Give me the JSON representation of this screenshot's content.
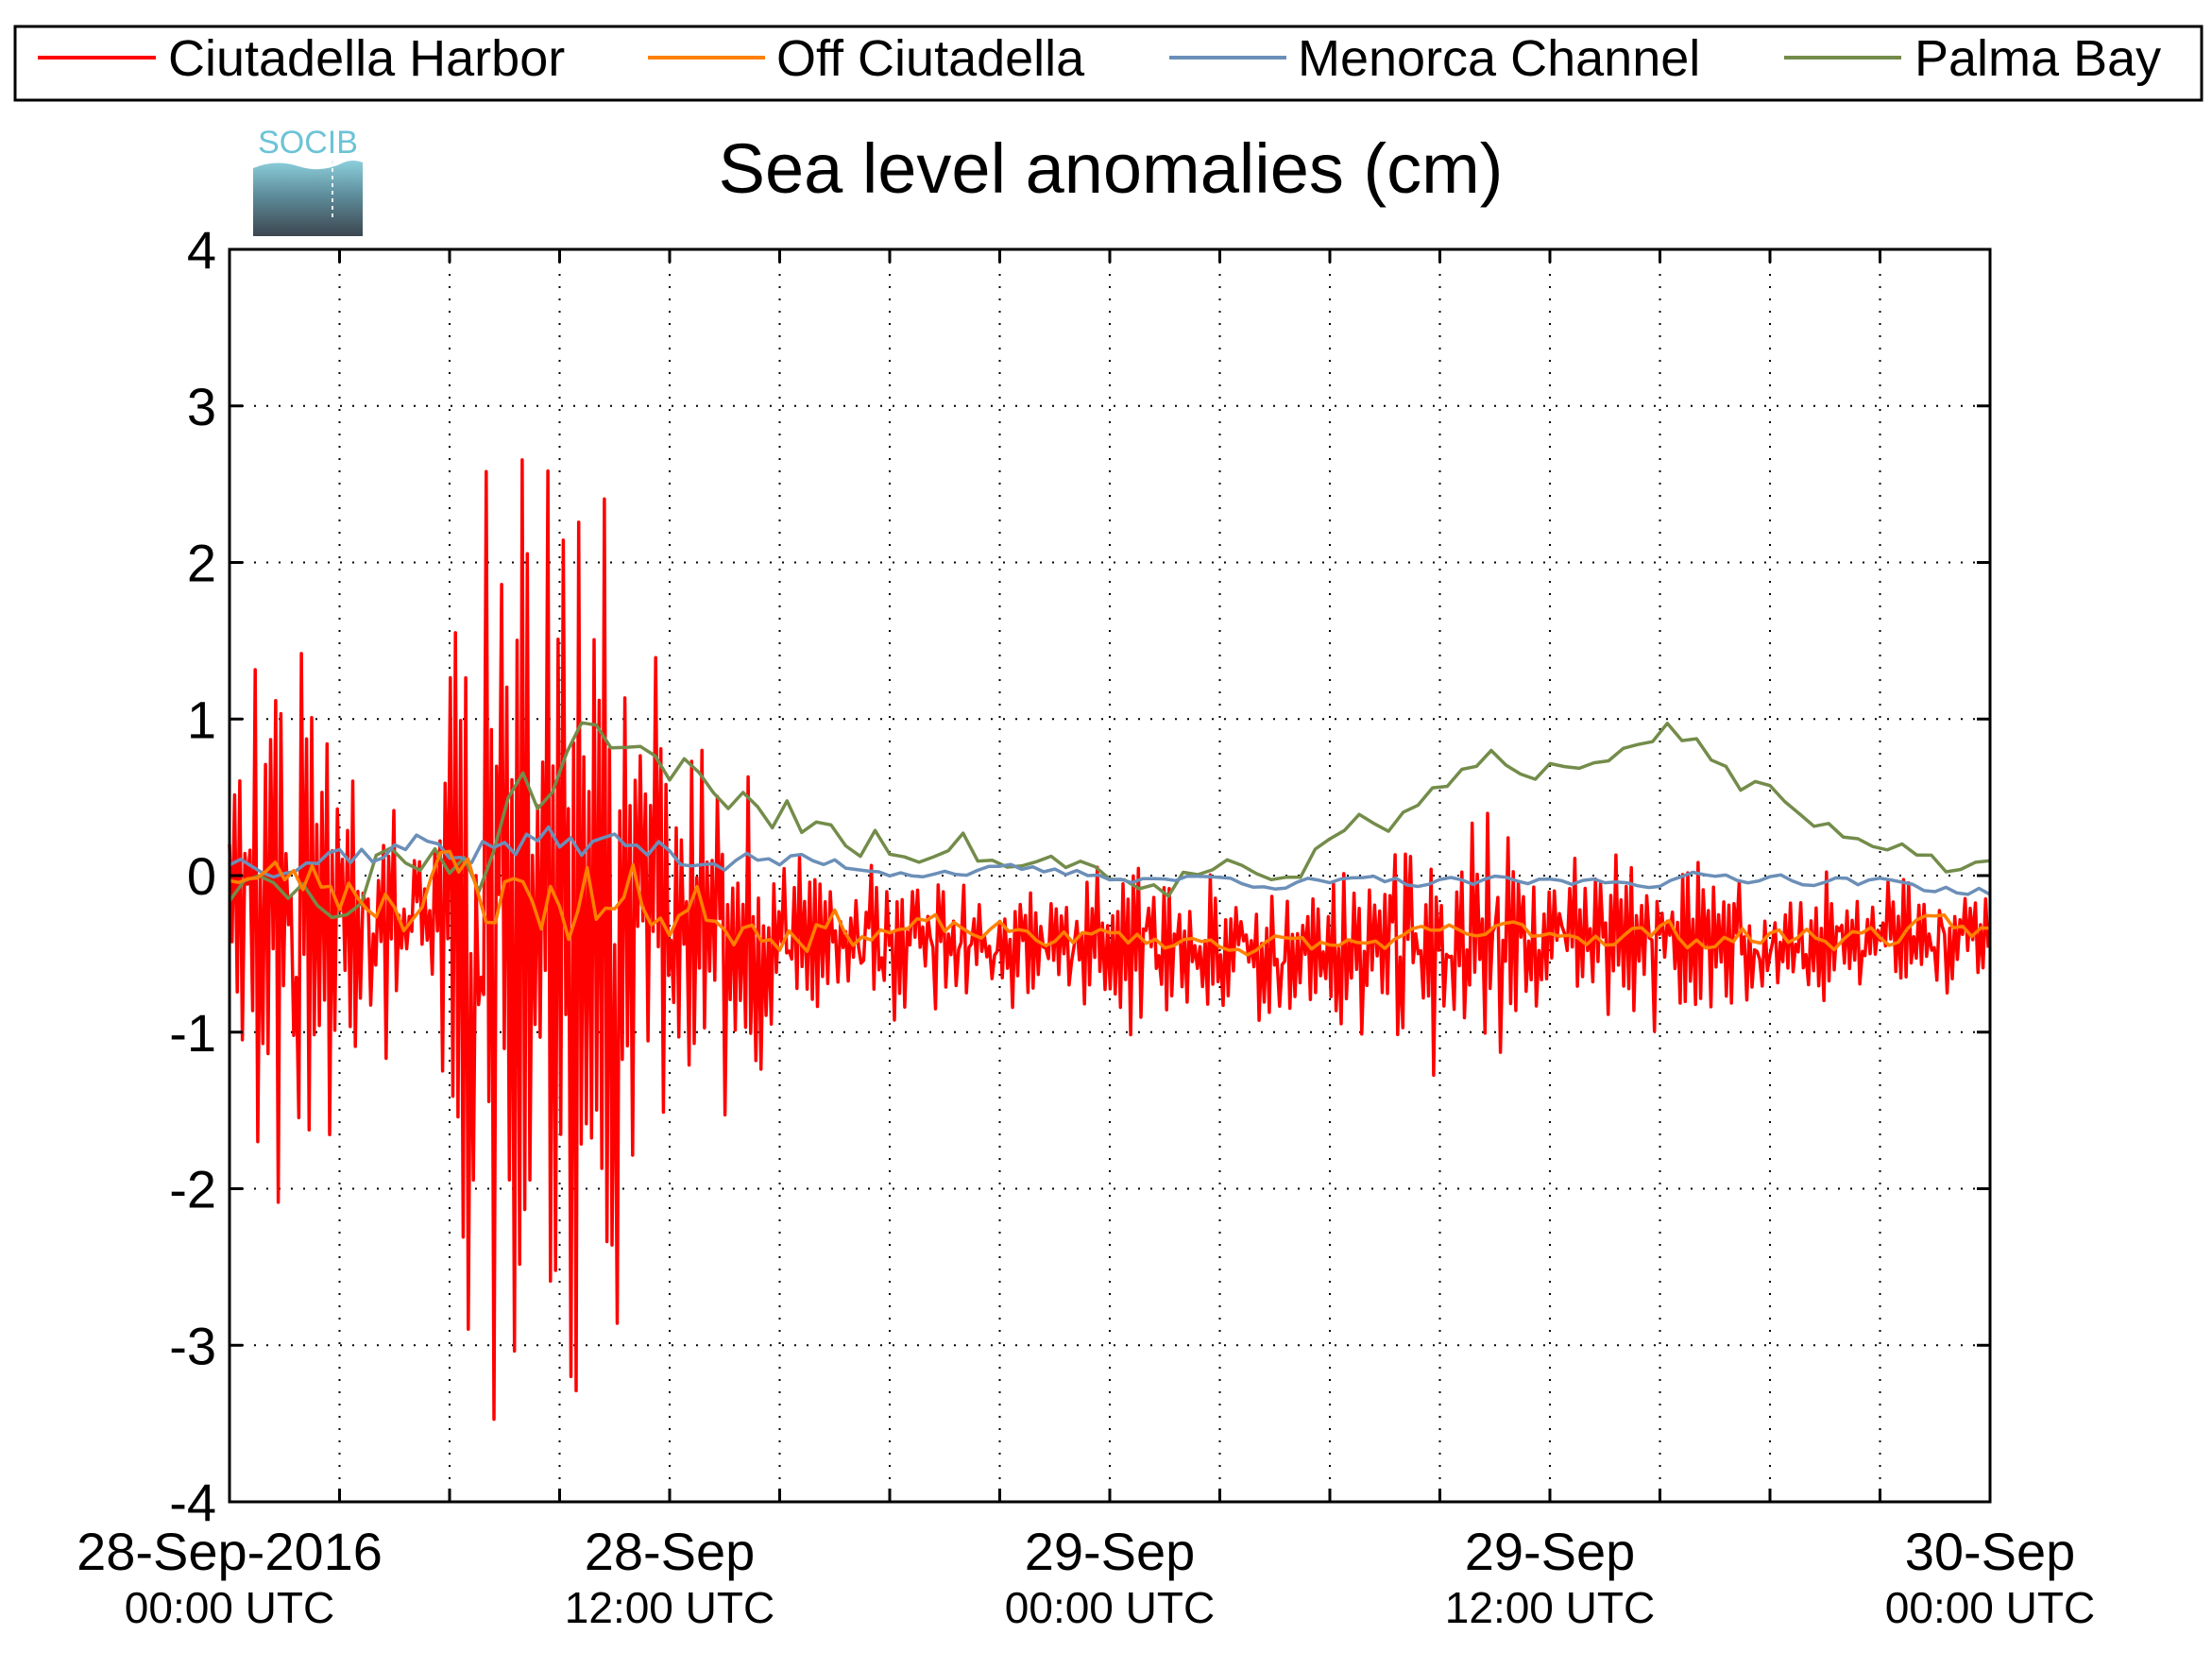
{
  "chart_data": {
    "type": "line",
    "title": "Sea level anomalies (cm)",
    "logo_text": "SOCIB",
    "ylim": [
      -4,
      4
    ],
    "y_ticks": [
      4,
      3,
      2,
      1,
      0,
      -1,
      -2,
      -3,
      -4
    ],
    "y_tick_labels": [
      "4",
      "3",
      "2",
      "1",
      "0",
      "-1",
      "-2",
      "-3",
      "-4"
    ],
    "x_unit": "hours since 28-Sep-2016 00:00 UTC",
    "xlim": [
      0,
      48
    ],
    "x_tick_hours": [
      0,
      12,
      24,
      36,
      48
    ],
    "x_tick_labels": [
      {
        "date": "28-Sep-2016",
        "time": "00:00 UTC"
      },
      {
        "date": "28-Sep",
        "time": "12:00 UTC"
      },
      {
        "date": "29-Sep",
        "time": "00:00 UTC"
      },
      {
        "date": "29-Sep",
        "time": "12:00 UTC"
      },
      {
        "date": "30-Sep",
        "time": "00:00 UTC"
      }
    ],
    "grid": true,
    "legend_position": "top",
    "series": [
      {
        "name": "Ciutadella Harbor",
        "color": "#ff0000",
        "amplitude_env": [
          [
            0,
            0.6
          ],
          [
            0.5,
            1.8
          ],
          [
            1.5,
            2.2
          ],
          [
            2.5,
            1.3
          ],
          [
            3.5,
            0.9
          ],
          [
            4.5,
            0.9
          ],
          [
            5.5,
            0.6
          ],
          [
            6,
            2.2
          ],
          [
            7,
            2.8
          ],
          [
            8,
            3.0
          ],
          [
            9,
            3.3
          ],
          [
            10,
            2.9
          ],
          [
            11,
            2.0
          ],
          [
            12,
            1.4
          ],
          [
            13,
            1.2
          ],
          [
            14,
            1.0
          ],
          [
            15,
            0.6
          ],
          [
            17,
            0.5
          ],
          [
            20,
            0.35
          ],
          [
            22,
            0.35
          ],
          [
            25,
            0.55
          ],
          [
            28,
            0.45
          ],
          [
            31,
            0.55
          ],
          [
            33,
            0.8
          ],
          [
            34.5,
            0.7
          ],
          [
            36,
            0.35
          ],
          [
            38,
            0.55
          ],
          [
            40,
            0.5
          ],
          [
            42,
            0.35
          ],
          [
            44,
            0.4
          ],
          [
            48,
            0.35
          ]
        ]
      },
      {
        "name": "Off Ciutadella",
        "color": "#ff8000",
        "amplitude_env": [
          [
            0,
            0.1
          ],
          [
            2,
            0.25
          ],
          [
            5,
            0.35
          ],
          [
            8,
            0.4
          ],
          [
            10,
            0.45
          ],
          [
            12,
            0.3
          ],
          [
            15,
            0.2
          ],
          [
            20,
            0.1
          ],
          [
            30,
            0.08
          ],
          [
            40,
            0.12
          ],
          [
            48,
            0.1
          ]
        ]
      },
      {
        "name": "Menorca Channel",
        "color": "#6b8fb8",
        "amplitude_env": [
          [
            0,
            0.1
          ],
          [
            3,
            0.15
          ],
          [
            6,
            0.18
          ],
          [
            10,
            0.15
          ],
          [
            14,
            0.1
          ],
          [
            20,
            0.05
          ],
          [
            30,
            0.05
          ],
          [
            40,
            0.05
          ],
          [
            48,
            0.05
          ]
        ]
      },
      {
        "name": "Palma Bay",
        "color": "#738c4a",
        "amplitude_env": [
          [
            0,
            0.2
          ],
          [
            3,
            0.4
          ],
          [
            6,
            0.55
          ],
          [
            9,
            0.5
          ],
          [
            12,
            0.3
          ],
          [
            15,
            0.3
          ],
          [
            20,
            0.2
          ],
          [
            30,
            0.18
          ],
          [
            40,
            0.15
          ],
          [
            48,
            0.1
          ]
        ]
      }
    ]
  }
}
